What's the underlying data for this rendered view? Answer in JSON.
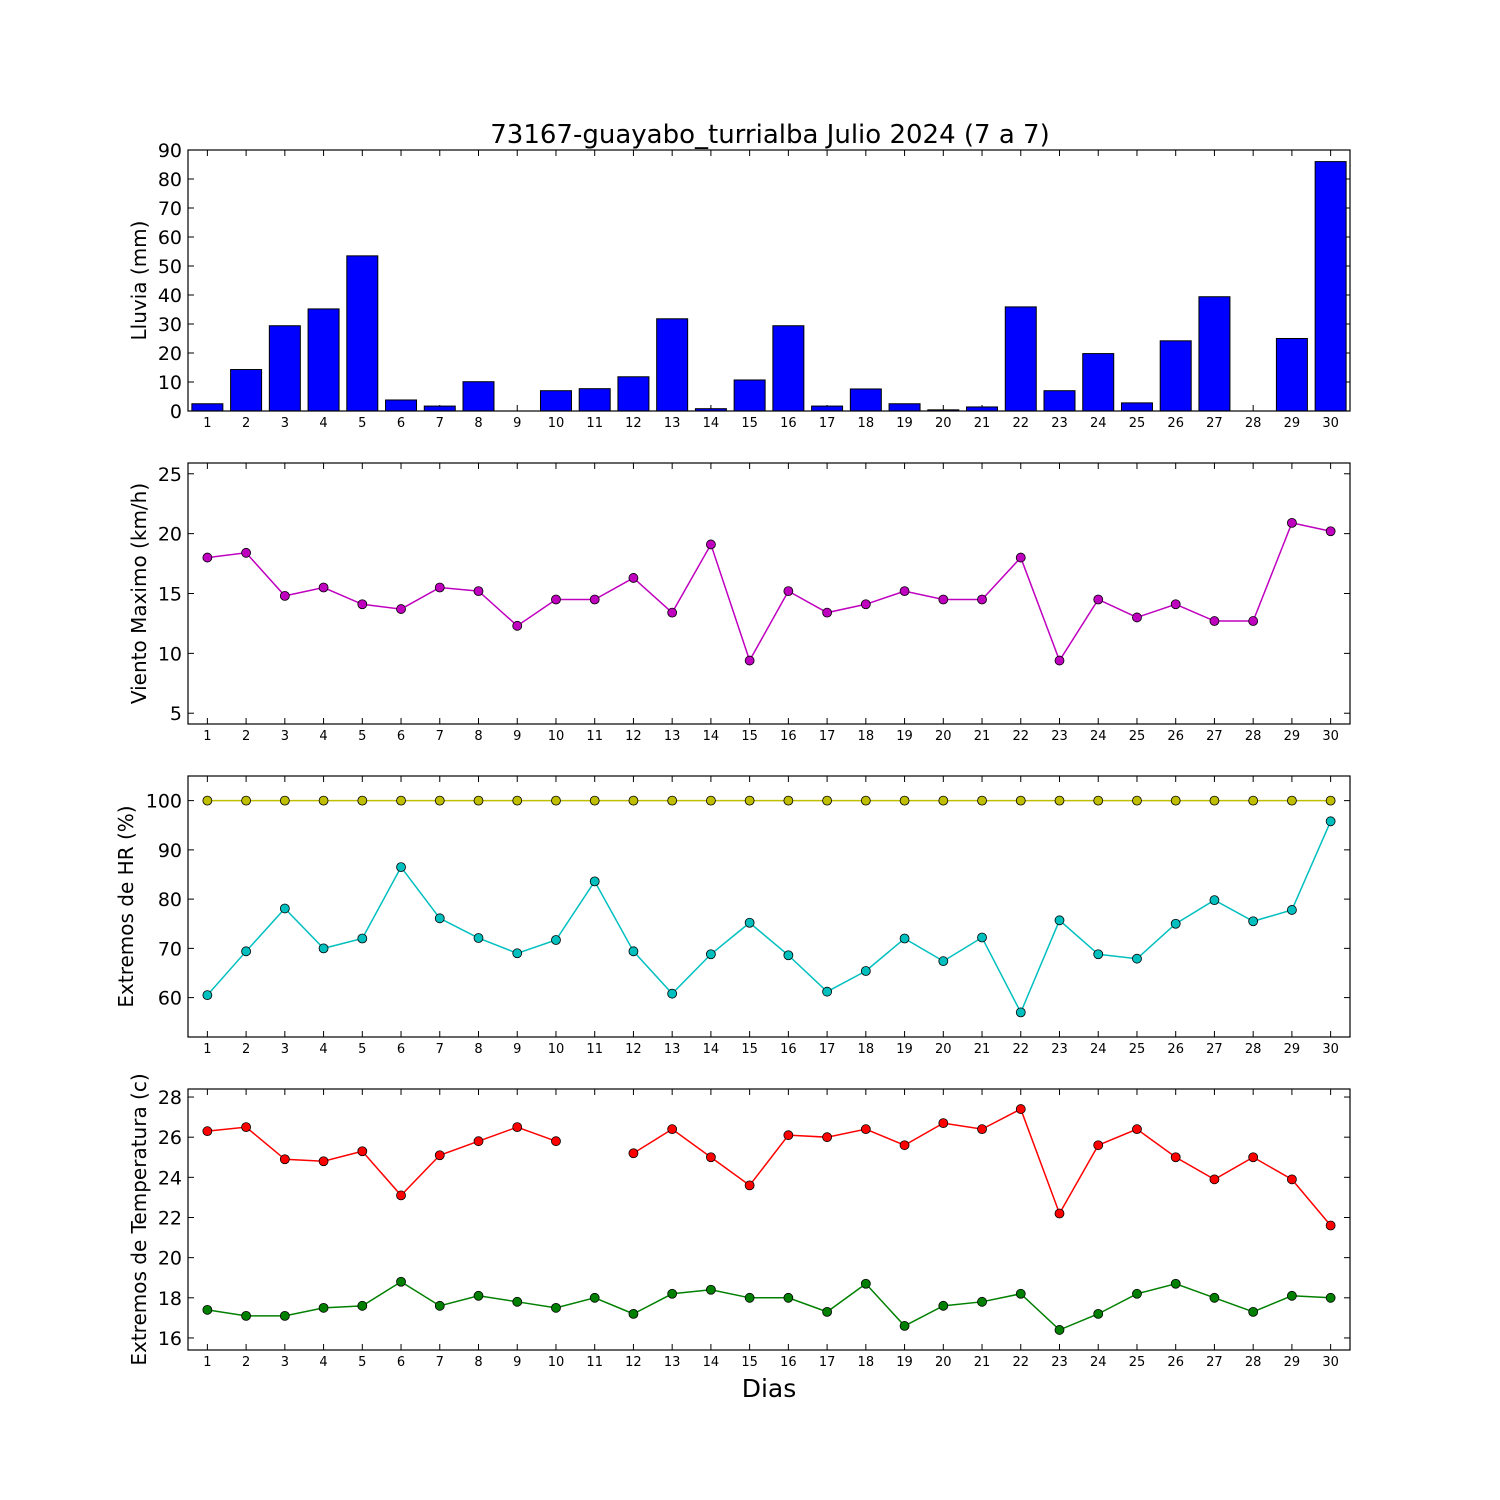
{
  "title": "73167-guayabo_turrialba Julio 2024  (7 a 7)",
  "xlabel": "Dias",
  "chart_data": [
    {
      "type": "bar",
      "ylabel": "Lluvia (mm)",
      "ylim": [
        0,
        90
      ],
      "yticks": [
        0,
        10,
        20,
        30,
        40,
        50,
        60,
        70,
        80,
        90
      ],
      "categories": [
        1,
        2,
        3,
        4,
        5,
        6,
        7,
        8,
        9,
        10,
        11,
        12,
        13,
        14,
        15,
        16,
        17,
        18,
        19,
        20,
        21,
        22,
        23,
        24,
        25,
        26,
        27,
        28,
        29,
        30
      ],
      "series": [
        {
          "color": "#0000ff",
          "values": [
            2.5,
            14.3,
            29.4,
            35.2,
            53.5,
            3.8,
            1.7,
            10.1,
            0,
            7.0,
            7.7,
            11.8,
            31.8,
            0.8,
            10.7,
            29.4,
            1.7,
            7.6,
            2.5,
            0.4,
            1.4,
            35.9,
            7.0,
            19.8,
            2.8,
            24.2,
            39.4,
            0,
            25.0,
            86.0
          ]
        }
      ]
    },
    {
      "type": "line",
      "ylabel": "Viento Maximo (km/h)",
      "ylim": [
        4.1,
        25.9
      ],
      "yticks": [
        5,
        10,
        15,
        20,
        25
      ],
      "x": [
        1,
        2,
        3,
        4,
        5,
        6,
        7,
        8,
        9,
        10,
        11,
        12,
        13,
        14,
        15,
        16,
        17,
        18,
        19,
        20,
        21,
        22,
        23,
        24,
        25,
        26,
        27,
        28,
        29,
        30
      ],
      "series": [
        {
          "color": "#bf00bf",
          "values": [
            18.0,
            18.4,
            14.8,
            15.5,
            14.1,
            13.7,
            15.5,
            15.2,
            12.3,
            14.5,
            14.5,
            16.3,
            13.4,
            19.1,
            9.4,
            15.2,
            13.4,
            14.1,
            15.2,
            14.5,
            14.5,
            18.0,
            9.4,
            14.5,
            13.0,
            14.1,
            12.7,
            12.7,
            20.9,
            20.2
          ]
        }
      ]
    },
    {
      "type": "line",
      "ylabel": "Extremos de HR (%)",
      "ylim": [
        52,
        105
      ],
      "yticks": [
        60,
        70,
        80,
        90,
        100
      ],
      "x": [
        1,
        2,
        3,
        4,
        5,
        6,
        7,
        8,
        9,
        10,
        11,
        12,
        13,
        14,
        15,
        16,
        17,
        18,
        19,
        20,
        21,
        22,
        23,
        24,
        25,
        26,
        27,
        28,
        29,
        30
      ],
      "series": [
        {
          "color": "#bfbf00",
          "values": [
            100,
            100,
            100,
            100,
            100,
            100,
            100,
            100,
            100,
            100,
            100,
            100,
            100,
            100,
            100,
            100,
            100,
            100,
            100,
            100,
            100,
            100,
            100,
            100,
            100,
            100,
            100,
            100,
            100,
            100
          ]
        },
        {
          "color": "#00bfbf",
          "values": [
            60.5,
            69.4,
            78.1,
            70.0,
            72.0,
            86.5,
            76.1,
            72.1,
            69.0,
            71.7,
            83.6,
            69.4,
            60.8,
            68.8,
            75.2,
            68.6,
            61.2,
            65.4,
            72.0,
            67.4,
            72.2,
            57.0,
            75.7,
            68.8,
            67.9,
            75.0,
            79.8,
            75.5,
            77.8,
            95.8
          ]
        }
      ]
    },
    {
      "type": "line",
      "ylabel": "Extremos de Temperatura (c)",
      "ylim": [
        15.4,
        28.4
      ],
      "yticks": [
        16,
        18,
        20,
        22,
        24,
        26,
        28
      ],
      "x": [
        1,
        2,
        3,
        4,
        5,
        6,
        7,
        8,
        9,
        10,
        11,
        12,
        13,
        14,
        15,
        16,
        17,
        18,
        19,
        20,
        21,
        22,
        23,
        24,
        25,
        26,
        27,
        28,
        29,
        30
      ],
      "series": [
        {
          "color": "#ff0000",
          "values": [
            26.3,
            26.5,
            24.9,
            24.8,
            25.3,
            23.1,
            25.1,
            25.8,
            26.5,
            25.8,
            null,
            25.2,
            26.4,
            25.0,
            23.6,
            26.1,
            26.0,
            26.4,
            25.6,
            26.7,
            26.4,
            27.4,
            22.2,
            25.6,
            26.4,
            25.0,
            23.9,
            25.0,
            23.9,
            21.6
          ]
        },
        {
          "color": "#008000",
          "values": [
            17.4,
            17.1,
            17.1,
            17.5,
            17.6,
            18.8,
            17.6,
            18.1,
            17.8,
            17.5,
            18.0,
            17.2,
            18.2,
            18.4,
            18.0,
            18.0,
            17.3,
            18.7,
            16.6,
            17.6,
            17.8,
            18.2,
            16.4,
            17.2,
            18.2,
            18.7,
            18.0,
            17.3,
            18.1,
            18.0
          ]
        }
      ]
    }
  ]
}
